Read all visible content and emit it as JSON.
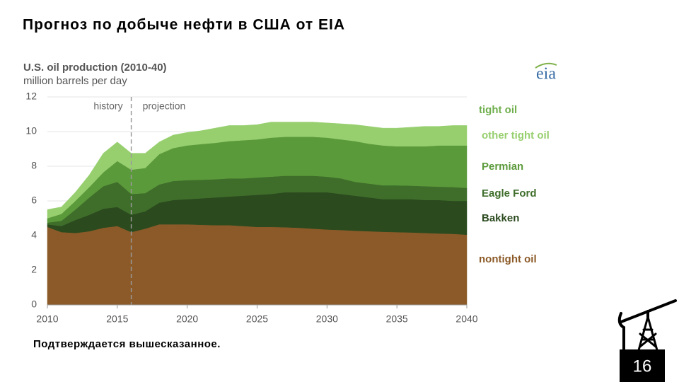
{
  "slide": {
    "title": "Прогноз по добыче нефти в США от EIA",
    "footer_text": "Подтверждается вышесказанное.",
    "page_number": "16",
    "source_logo": "eia"
  },
  "chart_data": {
    "type": "area",
    "stacked": true,
    "title": "U.S. oil production (2010-40)",
    "subtitle": "million barrels per day",
    "history_label": "history",
    "projection_label": "projection",
    "projection_start": 2016,
    "group_label": "tight oil",
    "x": [
      2010,
      2011,
      2012,
      2013,
      2014,
      2015,
      2016,
      2017,
      2018,
      2019,
      2020,
      2021,
      2022,
      2023,
      2024,
      2025,
      2026,
      2027,
      2028,
      2029,
      2030,
      2031,
      2032,
      2033,
      2034,
      2035,
      2036,
      2037,
      2038,
      2039,
      2040
    ],
    "xlim": [
      2010,
      2040
    ],
    "xticks": [
      2010,
      2015,
      2020,
      2025,
      2030,
      2035,
      2040
    ],
    "ylim": [
      0,
      12
    ],
    "yticks": [
      0,
      2,
      4,
      6,
      8,
      10,
      12
    ],
    "grid": true,
    "series": [
      {
        "name": "nontight oil",
        "color": "#8c5a28",
        "values": [
          4.5,
          4.2,
          4.15,
          4.25,
          4.45,
          4.55,
          4.2,
          4.4,
          4.65,
          4.65,
          4.65,
          4.62,
          4.6,
          4.6,
          4.55,
          4.5,
          4.5,
          4.48,
          4.45,
          4.4,
          4.35,
          4.32,
          4.28,
          4.25,
          4.22,
          4.2,
          4.18,
          4.15,
          4.12,
          4.1,
          4.05
        ]
      },
      {
        "name": "Bakken",
        "color": "#2b4a1e",
        "values": [
          0.15,
          0.35,
          0.75,
          0.95,
          1.1,
          1.1,
          1.0,
          1.0,
          1.25,
          1.4,
          1.45,
          1.53,
          1.6,
          1.65,
          1.75,
          1.85,
          1.9,
          2.02,
          2.05,
          2.1,
          2.15,
          2.08,
          2.02,
          1.95,
          1.88,
          1.9,
          1.92,
          1.9,
          1.93,
          1.9,
          1.95
        ]
      },
      {
        "name": "Eagle Ford",
        "color": "#3f6e2b",
        "values": [
          0.1,
          0.3,
          0.6,
          1.0,
          1.3,
          1.45,
          1.2,
          1.05,
          1.05,
          1.1,
          1.1,
          1.07,
          1.05,
          1.05,
          1.0,
          1.0,
          1.0,
          0.95,
          0.95,
          0.95,
          0.9,
          0.9,
          0.8,
          0.8,
          0.8,
          0.8,
          0.78,
          0.8,
          0.77,
          0.8,
          0.75
        ]
      },
      {
        "name": "Permian",
        "color": "#5b9a3a",
        "values": [
          0.25,
          0.4,
          0.5,
          0.6,
          0.8,
          1.2,
          1.4,
          1.45,
          1.75,
          1.9,
          2.0,
          2.06,
          2.1,
          2.15,
          2.2,
          2.2,
          2.25,
          2.25,
          2.25,
          2.25,
          2.25,
          2.25,
          2.35,
          2.3,
          2.3,
          2.25,
          2.27,
          2.3,
          2.38,
          2.4,
          2.45
        ]
      },
      {
        "name": "other tight oil",
        "color": "#97cf6f",
        "values": [
          0.5,
          0.4,
          0.5,
          0.7,
          1.1,
          1.1,
          0.95,
          0.85,
          0.7,
          0.75,
          0.75,
          0.77,
          0.85,
          0.9,
          0.85,
          0.85,
          0.9,
          0.85,
          0.85,
          0.85,
          0.85,
          0.9,
          0.95,
          1.0,
          1.0,
          1.05,
          1.1,
          1.15,
          1.1,
          1.15,
          1.15
        ]
      }
    ]
  }
}
